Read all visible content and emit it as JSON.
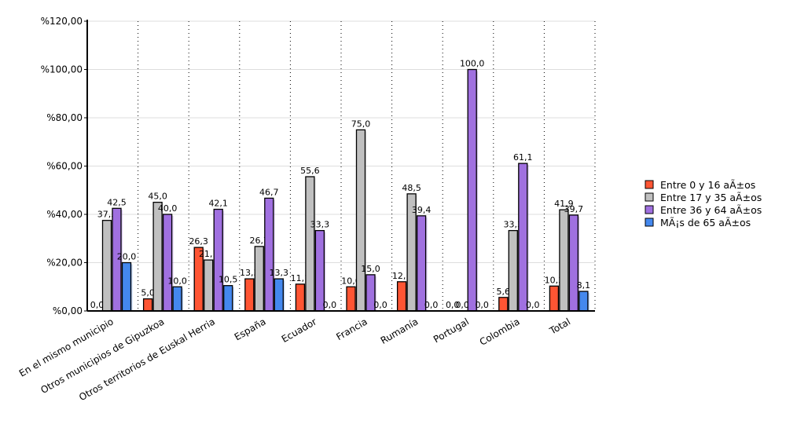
{
  "chart_data": {
    "type": "bar",
    "title": "",
    "xlabel": "",
    "ylabel": "",
    "ylim": [
      0,
      120
    ],
    "yticks": [
      0,
      20,
      40,
      60,
      80,
      100,
      120
    ],
    "ytick_labels": [
      "%0,00",
      "%20,00",
      "%40,00",
      "%60,00",
      "%80,00",
      "%100,00",
      "%120,00"
    ],
    "grid": true,
    "legend_placement": "right",
    "categories": [
      "En el mismo municipio",
      "Otros municipios de Gipuzkoa",
      "Otros territorios de Euskal Herria",
      "España",
      "Ecuador",
      "Francia",
      "Rumanía",
      "Portugal",
      "Colombia",
      "Total"
    ],
    "series": [
      {
        "name": "Entre 0 y 16 aÃ±os",
        "color": "#ff5533",
        "values": [
          0.0,
          5.0,
          26.3,
          13.3,
          11.1,
          10.0,
          12.1,
          0.0,
          5.6,
          10.3
        ],
        "labels": [
          "0,0",
          "5,0",
          "26,3",
          "13,3",
          "11,1",
          "10,0",
          "12,1",
          "0,0",
          "5,6",
          "10,3"
        ]
      },
      {
        "name": "Entre 17 y 35 aÃ±os",
        "color": "#c0c0c0",
        "values": [
          37.5,
          45.0,
          21.1,
          26.7,
          55.6,
          75.0,
          48.5,
          0.0,
          33.3,
          41.9
        ],
        "labels": [
          "37,5",
          "45,0",
          "21,1",
          "26,7",
          "55,6",
          "75,0",
          "48,5",
          "0,0",
          "33,3",
          "41,9"
        ]
      },
      {
        "name": "Entre 36 y 64 aÃ±os",
        "color": "#a070e0",
        "values": [
          42.5,
          40.0,
          42.1,
          46.7,
          33.3,
          15.0,
          39.4,
          100.0,
          61.1,
          39.7
        ],
        "labels": [
          "42,5",
          "40,0",
          "42,1",
          "46,7",
          "33,3",
          "15,0",
          "39,4",
          "100,0",
          "61,1",
          "39,7"
        ]
      },
      {
        "name": "MÃ¡s de 65 aÃ±os",
        "color": "#4488ee",
        "values": [
          20.0,
          10.0,
          10.5,
          13.3,
          0.0,
          0.0,
          0.0,
          0.0,
          0.0,
          8.1
        ],
        "labels": [
          "20,0",
          "10,0",
          "10,5",
          "13,3",
          "0,0",
          "0,0",
          "0,0",
          "0,0",
          "0,0",
          "8,1"
        ]
      }
    ]
  }
}
